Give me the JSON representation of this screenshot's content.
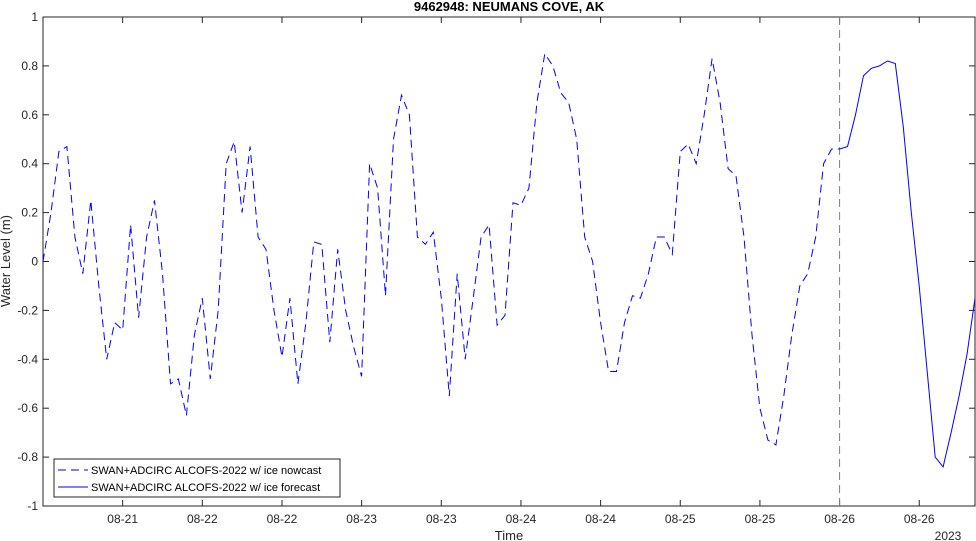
{
  "chart_data": {
    "type": "line",
    "title": "9462948: NEUMANS COVE, AK",
    "xlabel": "Time",
    "ylabel": "Water Level (m)",
    "xlim": [
      0,
      11.7
    ],
    "ylim": [
      -1,
      1
    ],
    "yticks": [
      -1,
      -0.8,
      -0.6,
      -0.4,
      -0.2,
      0,
      0.2,
      0.4,
      0.6,
      0.8,
      1
    ],
    "ytick_labels": [
      "-1",
      "-0.8",
      "-0.6",
      "-0.4",
      "-0.2",
      "0",
      "0.2",
      "0.4",
      "0.6",
      "0.8",
      "1"
    ],
    "xticks": [
      1,
      2,
      3,
      4,
      5,
      6,
      7,
      8,
      9,
      10,
      11
    ],
    "xtick_labels": [
      "08-21",
      "08-22",
      "08-22",
      "08-23",
      "08-23",
      "08-24",
      "08-24",
      "08-25",
      "08-25",
      "08-26",
      "08-26"
    ],
    "year_label": "2023",
    "forecast_start": 10,
    "grid": false,
    "legend_position": "bottom-left",
    "series": [
      {
        "name": "SWAN+ADCIRC ALCOFS-2022 w/ ice nowcast",
        "style": "dashed",
        "color": "#0000ff",
        "x": [
          0,
          0.1,
          0.2,
          0.3,
          0.4,
          0.5,
          0.6,
          0.7,
          0.8,
          0.9,
          1.0,
          1.1,
          1.2,
          1.3,
          1.4,
          1.5,
          1.6,
          1.7,
          1.8,
          1.9,
          2.0,
          2.1,
          2.2,
          2.3,
          2.4,
          2.5,
          2.6,
          2.7,
          2.8,
          2.9,
          3.0,
          3.1,
          3.2,
          3.3,
          3.4,
          3.5,
          3.6,
          3.7,
          3.8,
          3.9,
          4.0,
          4.1,
          4.2,
          4.3,
          4.4,
          4.5,
          4.6,
          4.7,
          4.8,
          4.9,
          5.0,
          5.1,
          5.2,
          5.3,
          5.4,
          5.5,
          5.6,
          5.7,
          5.8,
          5.9,
          6.0,
          6.1,
          6.2,
          6.3,
          6.4,
          6.5,
          6.6,
          6.7,
          6.8,
          6.9,
          7.0,
          7.1,
          7.2,
          7.3,
          7.4,
          7.5,
          7.6,
          7.7,
          7.8,
          7.9,
          8.0,
          8.1,
          8.2,
          8.3,
          8.4,
          8.5,
          8.6,
          8.7,
          8.8,
          8.9,
          9.0,
          9.1,
          9.2,
          9.3,
          9.4,
          9.5,
          9.6,
          9.7,
          9.8,
          9.9,
          10.0
        ],
        "y": [
          0.0,
          0.2,
          0.45,
          0.47,
          0.1,
          -0.05,
          0.25,
          -0.1,
          -0.4,
          -0.25,
          -0.28,
          0.15,
          -0.23,
          0.1,
          0.25,
          -0.05,
          -0.5,
          -0.48,
          -0.63,
          -0.3,
          -0.15,
          -0.48,
          -0.2,
          0.4,
          0.49,
          0.2,
          0.47,
          0.1,
          0.05,
          -0.2,
          -0.39,
          -0.15,
          -0.5,
          -0.25,
          0.08,
          0.07,
          -0.33,
          0.05,
          -0.2,
          -0.35,
          -0.47,
          0.4,
          0.3,
          -0.14,
          0.5,
          0.68,
          0.6,
          0.1,
          0.07,
          0.12,
          -0.15,
          -0.55,
          -0.05,
          -0.4,
          -0.15,
          0.1,
          0.15,
          -0.26,
          -0.22,
          0.24,
          0.23,
          0.3,
          0.65,
          0.85,
          0.8,
          0.69,
          0.65,
          0.5,
          0.1,
          0.0,
          -0.25,
          -0.45,
          -0.45,
          -0.25,
          -0.14,
          -0.15,
          -0.05,
          0.1,
          0.1,
          0.03,
          0.45,
          0.48,
          0.4,
          0.6,
          0.83,
          0.65,
          0.38,
          0.35,
          0.1,
          -0.3,
          -0.6,
          -0.73,
          -0.75,
          -0.55,
          -0.3,
          -0.1,
          -0.05,
          0.1,
          0.4,
          0.46,
          0.46
        ]
      },
      {
        "name": "SWAN+ADCIRC ALCOFS-2022 w/ ice forecast",
        "style": "solid",
        "color": "#0000ff",
        "x": [
          10.0,
          10.1,
          10.2,
          10.3,
          10.4,
          10.5,
          10.6,
          10.7,
          10.8,
          10.9,
          11.0,
          11.1,
          11.2,
          11.3,
          11.4,
          11.5,
          11.6,
          11.7
        ],
        "y": [
          0.46,
          0.47,
          0.6,
          0.76,
          0.79,
          0.8,
          0.82,
          0.81,
          0.55,
          0.2,
          -0.1,
          -0.45,
          -0.8,
          -0.84,
          -0.7,
          -0.55,
          -0.38,
          -0.15
        ]
      }
    ]
  }
}
